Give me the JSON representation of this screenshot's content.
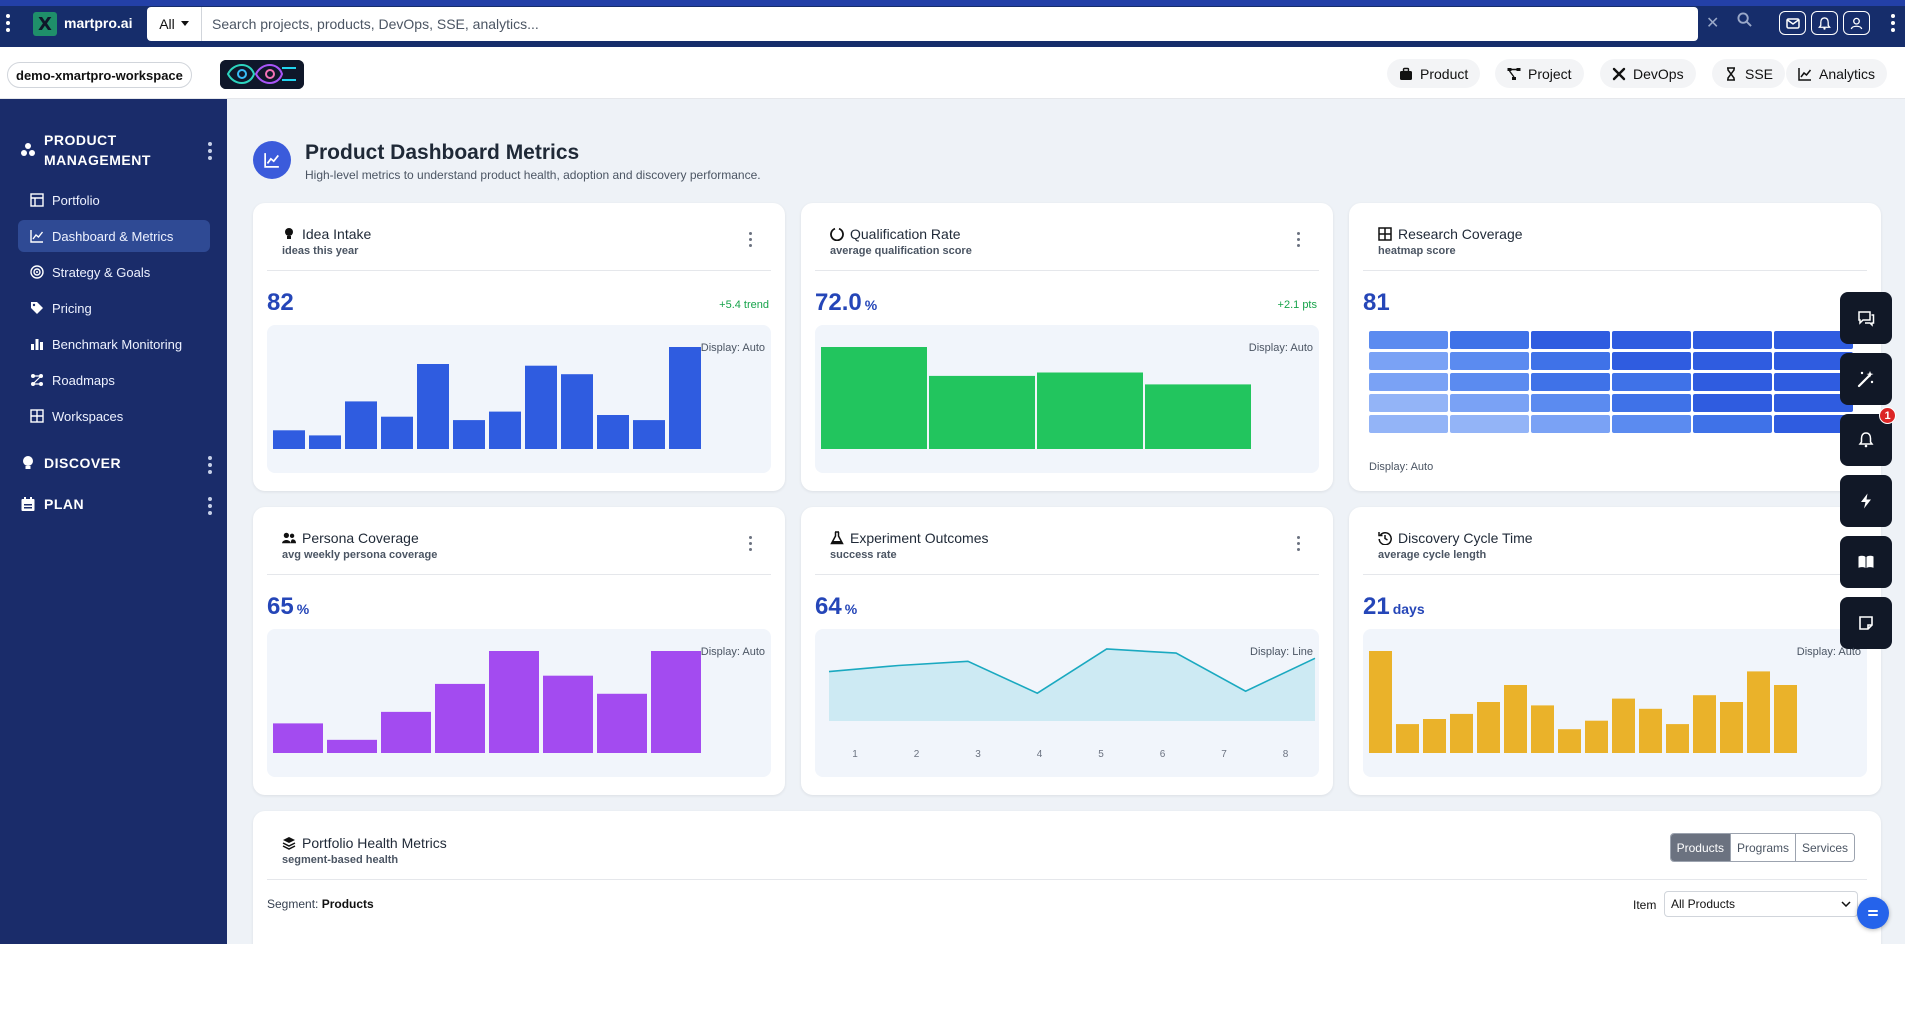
{
  "app": {
    "brand": "martpro.ai"
  },
  "search": {
    "scope": "All",
    "placeholder": "Search projects, products, DevOps, SSE, analytics..."
  },
  "workspace": {
    "name": "demo-xmartpro-workspace"
  },
  "top_nav": [
    {
      "label": "Product",
      "icon": "briefcase-icon"
    },
    {
      "label": "Project",
      "icon": "project-diagram-icon"
    },
    {
      "label": "DevOps",
      "icon": "tools-icon"
    },
    {
      "label": "SSE",
      "icon": "hourglass-icon"
    },
    {
      "label": "Analytics",
      "icon": "chart-line-icon"
    }
  ],
  "sidebar": {
    "sections": [
      {
        "title": "PRODUCT MANAGEMENT",
        "icon": "cubes-icon"
      },
      {
        "title": "DISCOVER",
        "icon": "lightbulb-icon"
      },
      {
        "title": "PLAN",
        "icon": "calendar-icon"
      }
    ],
    "items": [
      {
        "label": "Portfolio",
        "icon": "portfolio-icon"
      },
      {
        "label": "Dashboard & Metrics",
        "icon": "chart-line-icon",
        "active": true
      },
      {
        "label": "Strategy & Goals",
        "icon": "target-icon"
      },
      {
        "label": "Pricing",
        "icon": "tags-icon"
      },
      {
        "label": "Benchmark Monitoring",
        "icon": "bar-chart-icon"
      },
      {
        "label": "Roadmaps",
        "icon": "roadmap-icon"
      },
      {
        "label": "Workspaces",
        "icon": "grid-icon"
      }
    ]
  },
  "page": {
    "title": "Product Dashboard Metrics",
    "subtitle": "High-level metrics to understand product health, adoption and discovery performance."
  },
  "cards": [
    {
      "title": "Idea Intake",
      "subtitle": "ideas this year",
      "value": "82",
      "unit": "",
      "trend": "+5.4 trend",
      "display": "Display: Auto",
      "icon": "lightbulb-icon"
    },
    {
      "title": "Qualification Rate",
      "subtitle": "average qualification score",
      "value": "72.0",
      "unit": "%",
      "trend": "+2.1 pts",
      "display": "Display: Auto",
      "icon": "circle-notch-icon"
    },
    {
      "title": "Research Coverage",
      "subtitle": "heatmap score",
      "value": "81",
      "unit": "",
      "trend": "",
      "display": "Display: Auto",
      "icon": "table-icon"
    },
    {
      "title": "Persona Coverage",
      "subtitle": "avg weekly persona coverage",
      "value": "65",
      "unit": "%",
      "trend": "",
      "display": "Display: Auto",
      "icon": "users-icon"
    },
    {
      "title": "Experiment Outcomes",
      "subtitle": "success rate",
      "value": "64",
      "unit": "%",
      "trend": "",
      "display": "Display: Line",
      "icon": "flask-icon"
    },
    {
      "title": "Discovery Cycle Time",
      "subtitle": "average cycle length",
      "value": "21",
      "unit": "days",
      "trend": "",
      "display": "Display: Auto",
      "icon": "history-icon"
    }
  ],
  "chart_data": [
    {
      "type": "bar",
      "values": [
        11,
        8,
        28,
        19,
        50,
        17,
        22,
        49,
        44,
        20,
        17,
        60
      ],
      "color": "#2f5ce0"
    },
    {
      "type": "bar",
      "values": [
        60,
        43,
        45,
        38
      ],
      "color": "#22c55e"
    },
    {
      "type": "heatmap",
      "rows": 5,
      "cols": 6,
      "values": [
        [
          3,
          4,
          5,
          5,
          5,
          5
        ],
        [
          2,
          3,
          4,
          5,
          5,
          5
        ],
        [
          2,
          3,
          4,
          4,
          5,
          5
        ],
        [
          1,
          2,
          3,
          4,
          5,
          5
        ],
        [
          1,
          1,
          2,
          3,
          4,
          5
        ]
      ],
      "colors": [
        "#93b4f7",
        "#7aa2f5",
        "#5b8bf0",
        "#3f72e8",
        "#2f5ce0"
      ]
    },
    {
      "type": "bar",
      "values": [
        18,
        8,
        25,
        42,
        62,
        47,
        36,
        62
      ],
      "color": "#a34bf0"
    },
    {
      "type": "line",
      "x": [
        1,
        2,
        3,
        4,
        5,
        6,
        7,
        8
      ],
      "values": [
        48,
        54,
        58,
        27,
        70,
        66,
        29,
        61
      ],
      "color": "#1aa9c0",
      "fill": "#cdeaf3"
    },
    {
      "type": "bar",
      "values": [
        60,
        17,
        20,
        23,
        30,
        40,
        28,
        14,
        19,
        32,
        26,
        17,
        34,
        30,
        48,
        40
      ],
      "color": "#eab22a"
    }
  ],
  "portfolio": {
    "title": "Portfolio Health Metrics",
    "subtitle": "segment-based health",
    "segments": [
      "Products",
      "Programs",
      "Services"
    ],
    "segment_label": "Segment:",
    "segment_value": "Products",
    "item_label": "Item",
    "item_value": "All Products"
  },
  "notifications": {
    "count": "1"
  },
  "colors": {
    "topbar": "#162d6b",
    "sidebar": "#1a2c6a",
    "accent": "#2546b8"
  }
}
